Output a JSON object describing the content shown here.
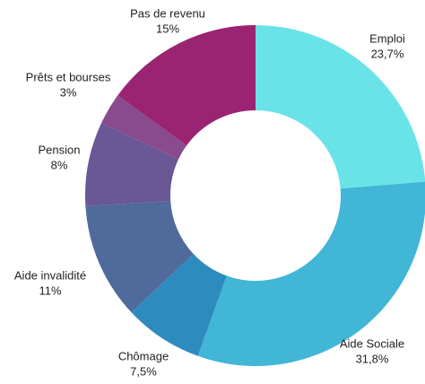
{
  "chart_data": {
    "type": "donut",
    "categories": [
      "Emploi",
      "Aide Sociale",
      "Chômage",
      "Aide invalidité",
      "Pension",
      "Prêts et bourses",
      "Pas de revenu"
    ],
    "values": [
      23.7,
      31.8,
      7.5,
      11,
      8,
      3,
      15
    ],
    "value_labels": [
      "23,7%",
      "31,8%",
      "7,5%",
      "11%",
      "8%",
      "3%",
      "15%"
    ],
    "colors": [
      "#6ae3e8",
      "#41b6d6",
      "#2e8bbd",
      "#4f6a9b",
      "#6a5795",
      "#8a4a8e",
      "#9a2472"
    ]
  }
}
